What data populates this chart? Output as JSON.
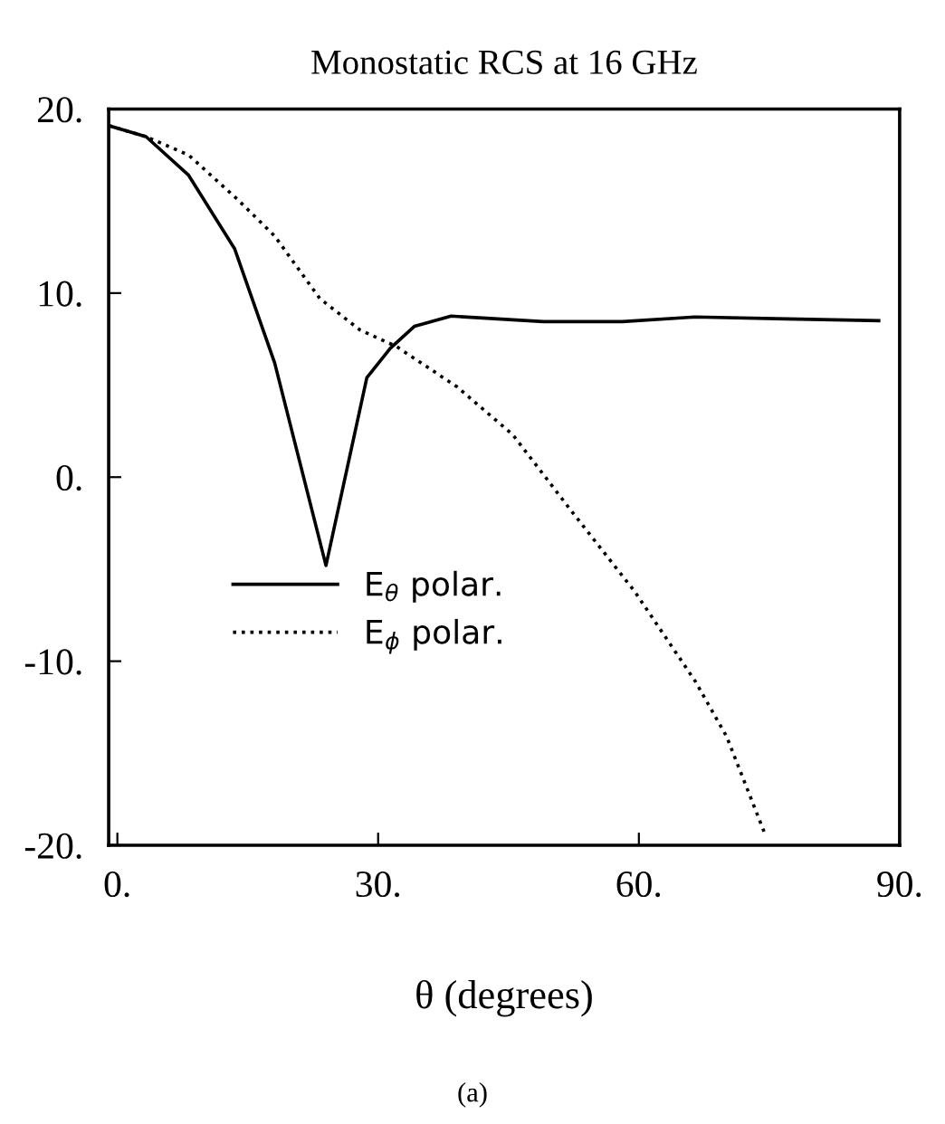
{
  "chart_data": {
    "type": "line",
    "title": "Monostatic RCS at 16 GHz",
    "xlabel": "θ (degrees)",
    "annotations": [
      "(a)"
    ],
    "xlim": [
      -1,
      90
    ],
    "ylim": [
      -20,
      20
    ],
    "xticks": [
      {
        "value": 0,
        "label": "0."
      },
      {
        "value": 30,
        "label": "30."
      },
      {
        "value": 60,
        "label": "60."
      },
      {
        "value": 90,
        "label": "90."
      }
    ],
    "yticks": [
      {
        "value": -20,
        "label": "-20."
      },
      {
        "value": -10,
        "label": "-10."
      },
      {
        "value": 0,
        "label": "0."
      },
      {
        "value": 10,
        "label": "10."
      },
      {
        "value": 20,
        "label": "20."
      }
    ],
    "grid": false,
    "legend": "bottom left",
    "marker": "none",
    "series": [
      {
        "name": "E$_{θ}$ polar.",
        "color": "#000000",
        "line_style": "solid",
        "x": [
          -1,
          3.3,
          8.2,
          13.5,
          18.1,
          24.0,
          28.7,
          31.4,
          34.2,
          38.4,
          49,
          58.1,
          66.5,
          77,
          87.6
        ],
        "values": [
          19.1,
          18.5,
          16.4,
          12.4,
          6.2,
          -4.8,
          5.4,
          7.0,
          8.2,
          8.75,
          8.45,
          8.45,
          8.7,
          8.6,
          8.5
        ]
      },
      {
        "name": "E$_{ϕ}$ polar.",
        "color": "#000000",
        "line_style": "dotted",
        "x": [
          -1,
          3.3,
          8.2,
          13.8,
          18.1,
          23.3,
          27.9,
          32.1,
          39.1,
          45.5,
          52.5,
          59.5,
          66.5,
          70.1,
          74.6
        ],
        "values": [
          19.1,
          18.5,
          17.5,
          15.1,
          13.1,
          9.7,
          8.0,
          7.1,
          4.9,
          2.3,
          -2.0,
          -6.2,
          -11.1,
          -14.1,
          -19.5
        ]
      }
    ]
  }
}
